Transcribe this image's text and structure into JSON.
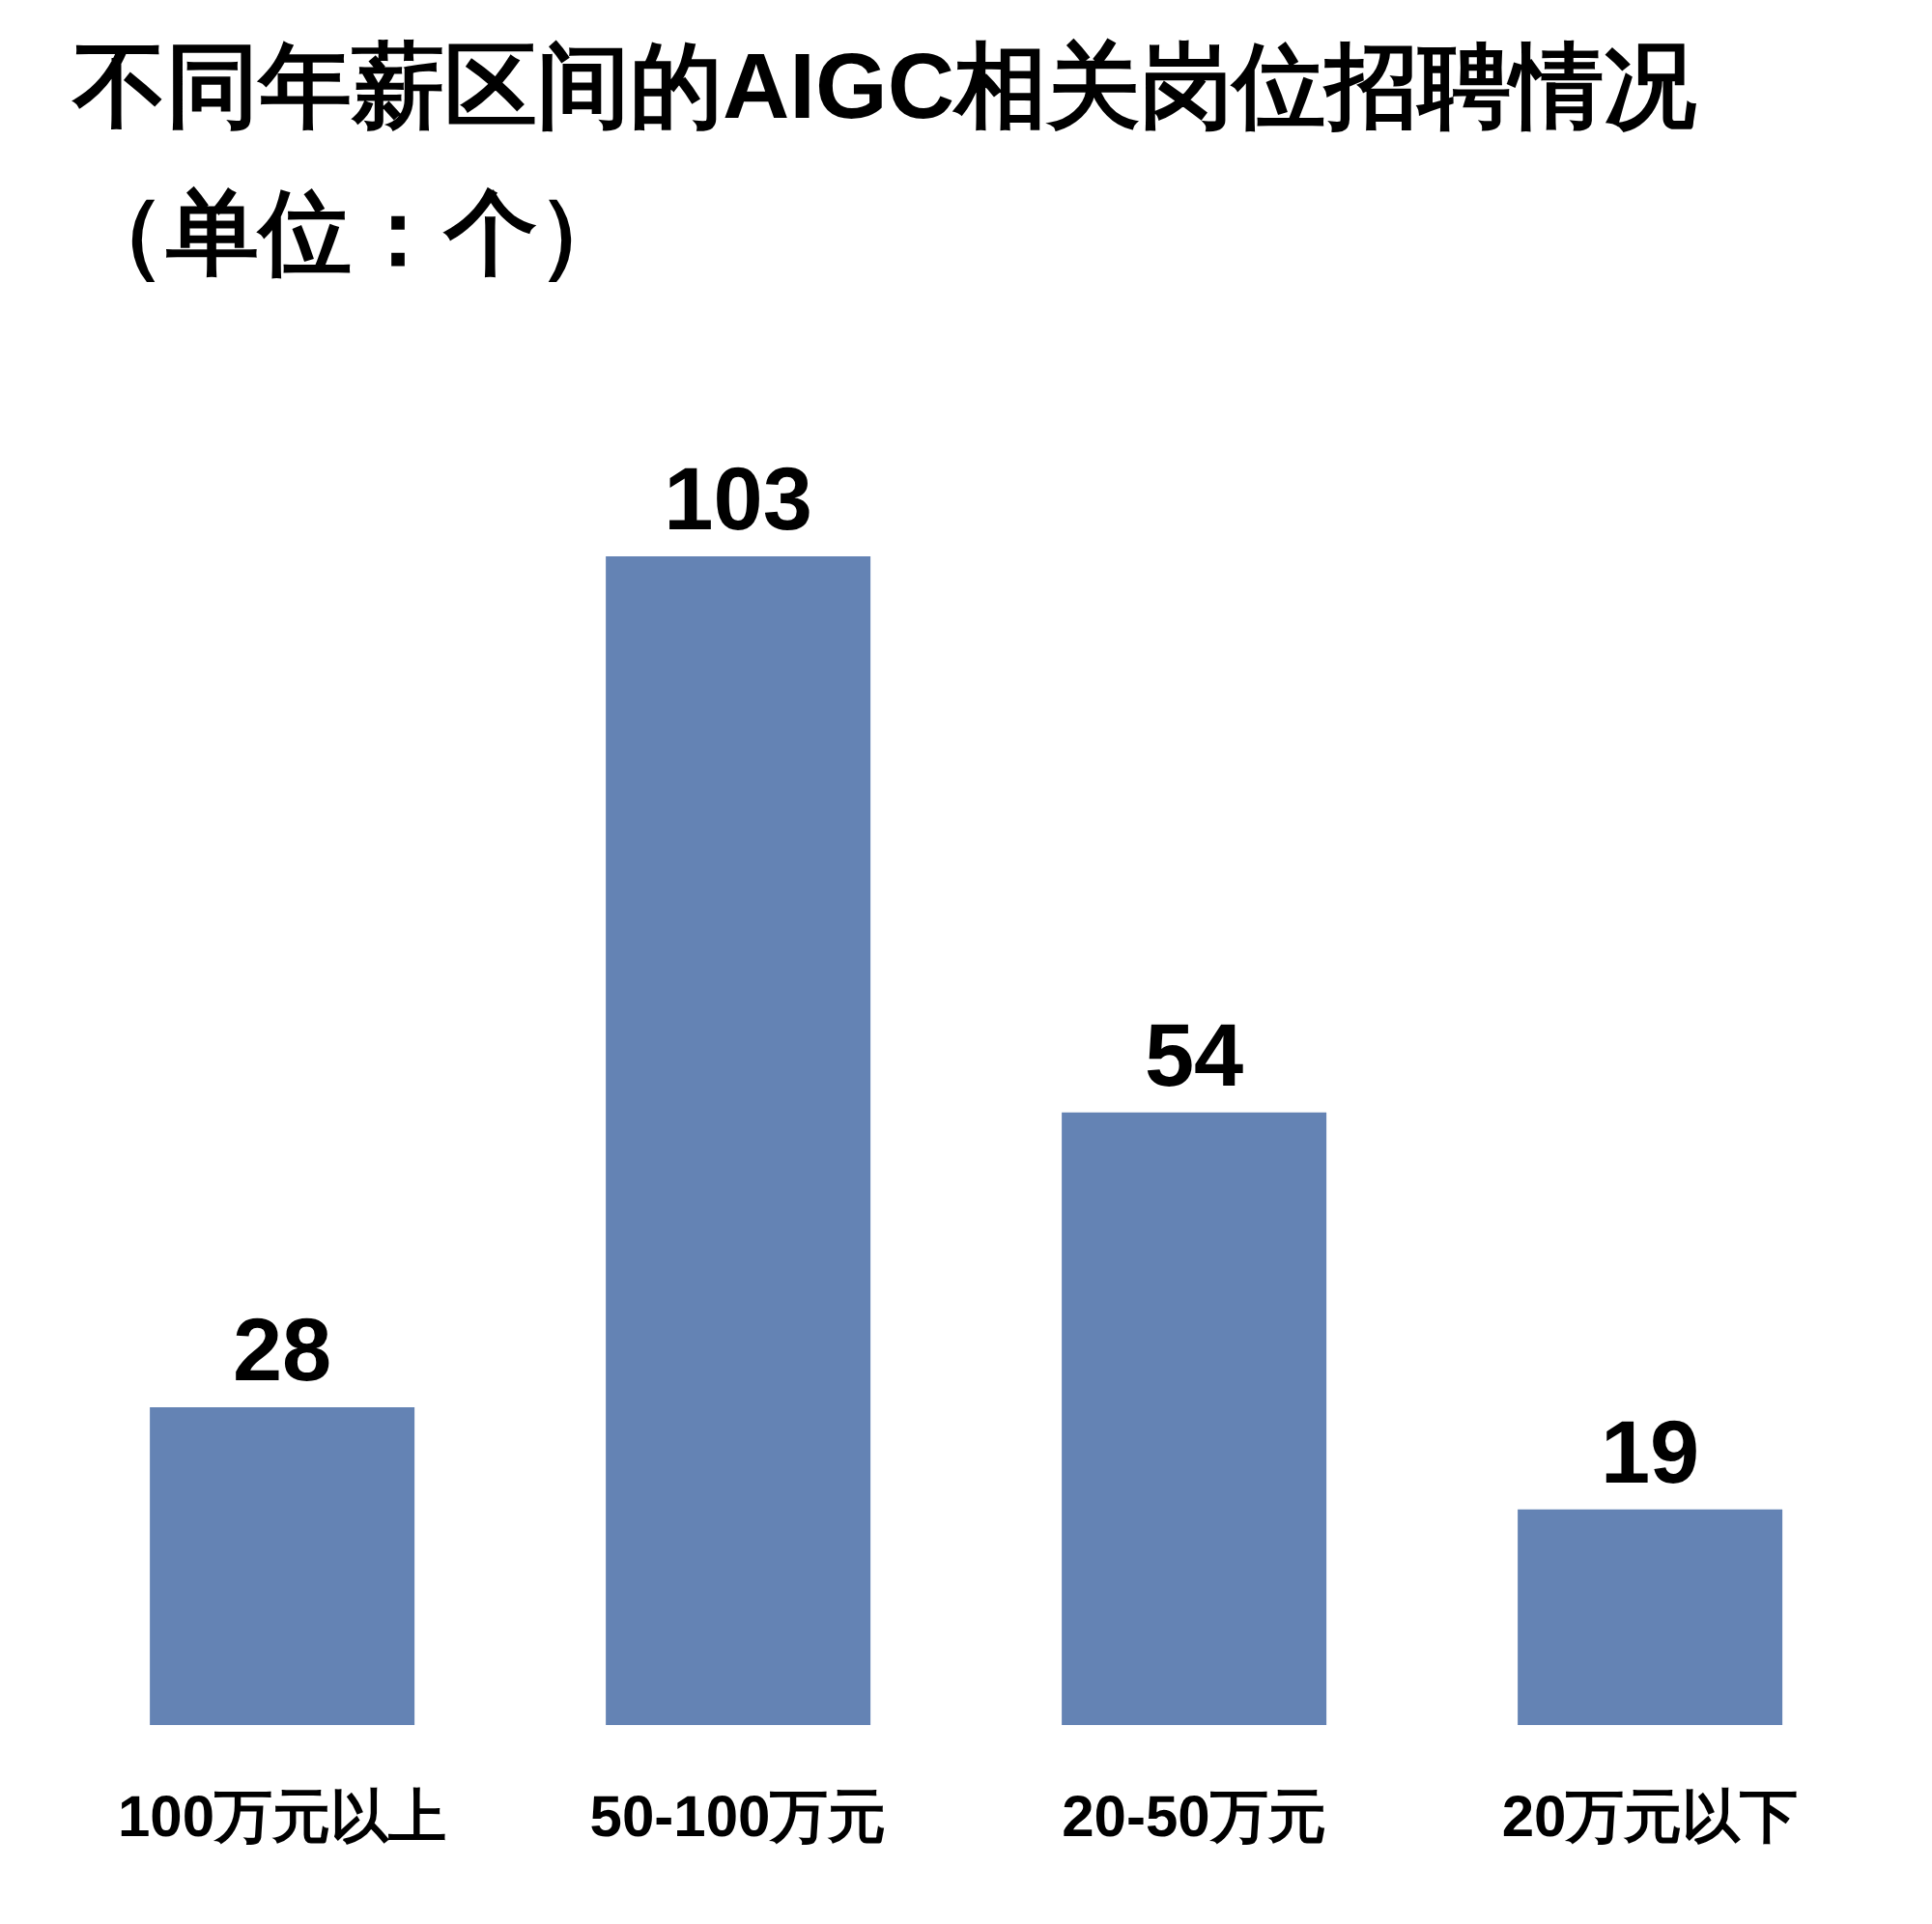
{
  "chart_data": {
    "type": "bar",
    "title": "不同年薪区间的AIGC相关岗位招聘情况（单位：个）",
    "categories": [
      "100万元以上",
      "50-100万元",
      "20-50万元",
      "20万元以下"
    ],
    "values": [
      28,
      103,
      54,
      19
    ],
    "color": "#6483b4",
    "data_labels": true
  }
}
